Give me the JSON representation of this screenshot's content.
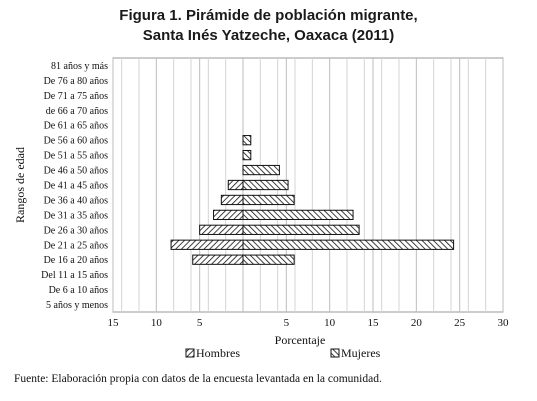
{
  "title": {
    "line1": "Figura 1. Pirámide de población migrante,",
    "line2": "Santa Inés Yatzeche, Oaxaca (2011)"
  },
  "source": "Fuente: Elaboración propia con datos de la encuesta levantada en la comunidad.",
  "chart_data": {
    "type": "bar",
    "orientation": "horizontal",
    "subtype": "population-pyramid",
    "ylabel": "Rangos de edad",
    "xlabel": "Porcentaje",
    "xticks": [
      "15",
      "10",
      "5",
      "",
      "5",
      "10",
      "15",
      "20",
      "25",
      "30"
    ],
    "xlim": [
      -15,
      30
    ],
    "grid": true,
    "legend_position": "bottom",
    "categories": [
      "81 años y más",
      "De 76 a 80 años",
      "De 71 a 75 años",
      "de 66 a 70 años",
      "De 61 a 65 años",
      "De 56 a 60 años",
      "De 51 a 55 años",
      "De 46 a 50 años",
      "De 41 a 45 años",
      "De 36 a 40 años",
      "De 31 a 35 años",
      "De 26 a 30 años",
      "De 21 a 25 años",
      "De 16 a 20 años",
      "Del 11 a 15 años",
      "De 6 a 10 años",
      "5 años y menos"
    ],
    "series": [
      {
        "name": "Hombres",
        "values": [
          0,
          0,
          0,
          0,
          0,
          0,
          0,
          0,
          -1.7,
          -2.5,
          -3.4,
          -5.0,
          -8.3,
          -5.8,
          0,
          0,
          0
        ]
      },
      {
        "name": "Mujeres",
        "values": [
          0,
          0,
          0,
          0,
          0,
          0.9,
          0.9,
          4.2,
          5.2,
          5.9,
          12.7,
          13.4,
          24.3,
          5.9,
          0,
          0,
          0
        ]
      }
    ]
  }
}
